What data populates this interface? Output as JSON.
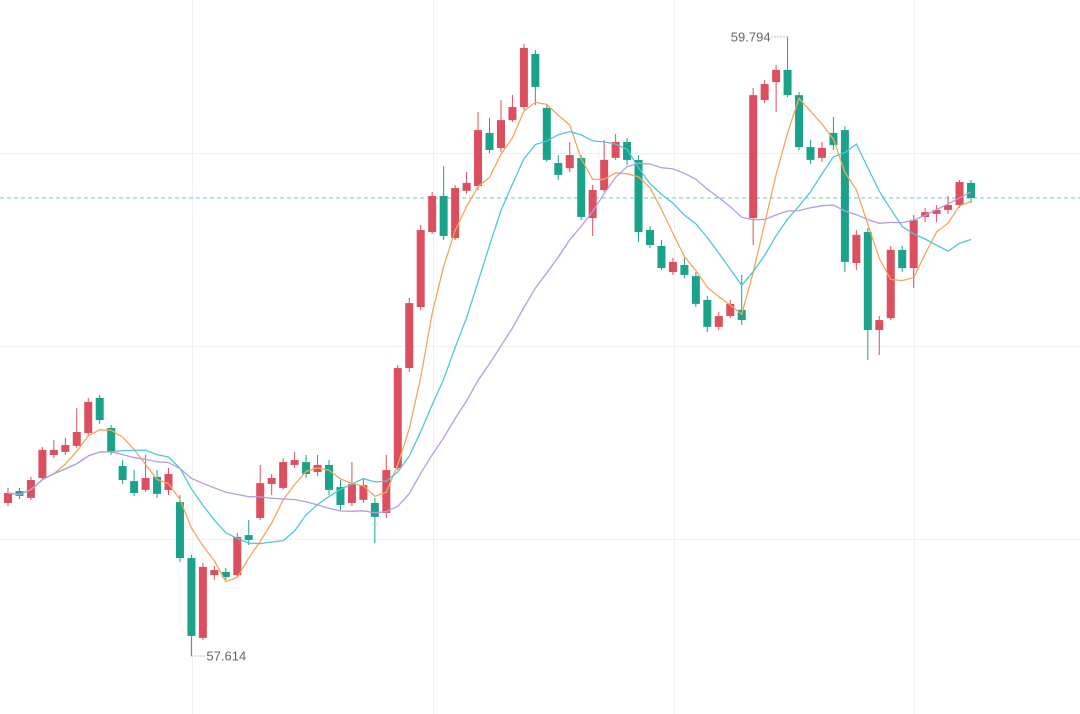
{
  "chart_data": {
    "type": "candlestick",
    "ylim": [
      57.41,
      59.924
    ],
    "up_color": "#dc4f5f",
    "down_color": "#1aa38a",
    "last_line_color": "#6cc9c0",
    "high_label": "59.794",
    "low_label": "57.614",
    "moving_averages": [
      {
        "period": 5,
        "color": "#f5a55a"
      },
      {
        "period": 10,
        "color": "#4cc9d6"
      },
      {
        "period": 20,
        "color": "#b59ee0"
      }
    ],
    "open": [
      58.153,
      58.195,
      58.171,
      58.241,
      58.322,
      58.333,
      58.354,
      58.399,
      58.523,
      58.417,
      58.283,
      58.23,
      58.199,
      58.245,
      58.199,
      58.156,
      57.959,
      57.678,
      57.899,
      57.91,
      57.899,
      58.04,
      58.1,
      58.22,
      58.206,
      58.287,
      58.297,
      58.262,
      58.287,
      58.209,
      58.153,
      58.164,
      58.153,
      58.118,
      58.276,
      58.628,
      58.843,
      59.107,
      59.234,
      59.086,
      59.252,
      59.269,
      59.456,
      59.403,
      59.501,
      59.547,
      59.734,
      59.544,
      59.35,
      59.332,
      59.368,
      59.156,
      59.255,
      59.368,
      59.424,
      59.361,
      59.114,
      59.058,
      58.966,
      58.991,
      58.952,
      58.868,
      58.773,
      58.811,
      58.833,
      59.156,
      59.572,
      59.635,
      59.678,
      59.589,
      59.406,
      59.368,
      59.456,
      59.466,
      58.998,
      59.107,
      58.762,
      58.804,
      59.044,
      58.98,
      59.16,
      59.171,
      59.185,
      59.202,
      59.28
    ],
    "high": [
      58.206,
      58.206,
      58.245,
      58.35,
      58.375,
      58.382,
      58.487,
      58.523,
      58.533,
      58.428,
      58.304,
      58.269,
      58.322,
      58.269,
      58.276,
      58.181,
      57.97,
      57.942,
      57.931,
      57.924,
      58.047,
      58.093,
      58.287,
      58.255,
      58.311,
      58.333,
      58.322,
      58.322,
      58.304,
      58.234,
      58.297,
      58.241,
      58.171,
      58.322,
      58.639,
      58.875,
      59.132,
      59.248,
      59.339,
      59.273,
      59.318,
      59.53,
      59.509,
      59.572,
      59.59,
      59.769,
      59.748,
      59.558,
      59.378,
      59.424,
      59.378,
      59.273,
      59.431,
      59.452,
      59.438,
      59.378,
      59.128,
      59.079,
      59.016,
      59.016,
      58.966,
      58.882,
      58.825,
      58.868,
      58.956,
      59.614,
      59.642,
      59.695,
      59.794,
      59.6,
      59.431,
      59.424,
      59.512,
      59.48,
      59.114,
      59.121,
      58.811,
      59.058,
      59.058,
      59.167,
      59.192,
      59.202,
      59.234,
      59.29,
      59.29
    ],
    "low": [
      58.142,
      58.167,
      58.164,
      58.234,
      58.311,
      58.322,
      58.347,
      58.392,
      58.431,
      58.322,
      58.22,
      58.178,
      58.192,
      58.171,
      58.181,
      57.945,
      57.614,
      57.671,
      57.882,
      57.882,
      57.889,
      58.005,
      58.093,
      58.181,
      58.199,
      58.276,
      58.241,
      58.248,
      58.181,
      58.128,
      58.142,
      58.153,
      58.012,
      58.1,
      58.269,
      58.614,
      58.832,
      59.1,
      59.079,
      59.079,
      59.241,
      59.255,
      59.385,
      59.389,
      59.494,
      59.537,
      59.554,
      59.354,
      59.29,
      59.318,
      59.149,
      59.093,
      59.248,
      59.361,
      59.343,
      59.072,
      59.051,
      58.973,
      58.956,
      58.945,
      58.843,
      58.755,
      58.762,
      58.804,
      58.78,
      59.061,
      59.561,
      59.53,
      59.582,
      59.396,
      59.347,
      59.354,
      59.396,
      58.966,
      58.973,
      58.656,
      58.674,
      58.797,
      58.966,
      58.91,
      59.142,
      59.142,
      59.171,
      59.192,
      59.209
    ],
    "close": [
      58.188,
      58.178,
      58.234,
      58.34,
      58.34,
      58.357,
      58.403,
      58.509,
      58.445,
      58.333,
      58.234,
      58.188,
      58.241,
      58.185,
      58.255,
      57.959,
      57.685,
      57.928,
      57.917,
      57.892,
      58.033,
      58.023,
      58.223,
      58.241,
      58.297,
      58.304,
      58.255,
      58.287,
      58.199,
      58.146,
      58.22,
      58.216,
      58.104,
      58.269,
      58.628,
      58.857,
      59.114,
      59.234,
      59.093,
      59.262,
      59.28,
      59.466,
      59.396,
      59.501,
      59.547,
      59.755,
      59.618,
      59.361,
      59.308,
      59.378,
      59.16,
      59.255,
      59.361,
      59.424,
      59.361,
      59.107,
      59.061,
      58.98,
      59.002,
      58.956,
      58.854,
      58.773,
      58.811,
      58.854,
      58.797,
      59.589,
      59.628,
      59.678,
      59.589,
      59.406,
      59.361,
      59.403,
      59.413,
      59.002,
      59.097,
      58.762,
      58.797,
      59.044,
      58.98,
      59.149,
      59.177,
      59.185,
      59.202,
      59.283,
      59.227
    ]
  }
}
